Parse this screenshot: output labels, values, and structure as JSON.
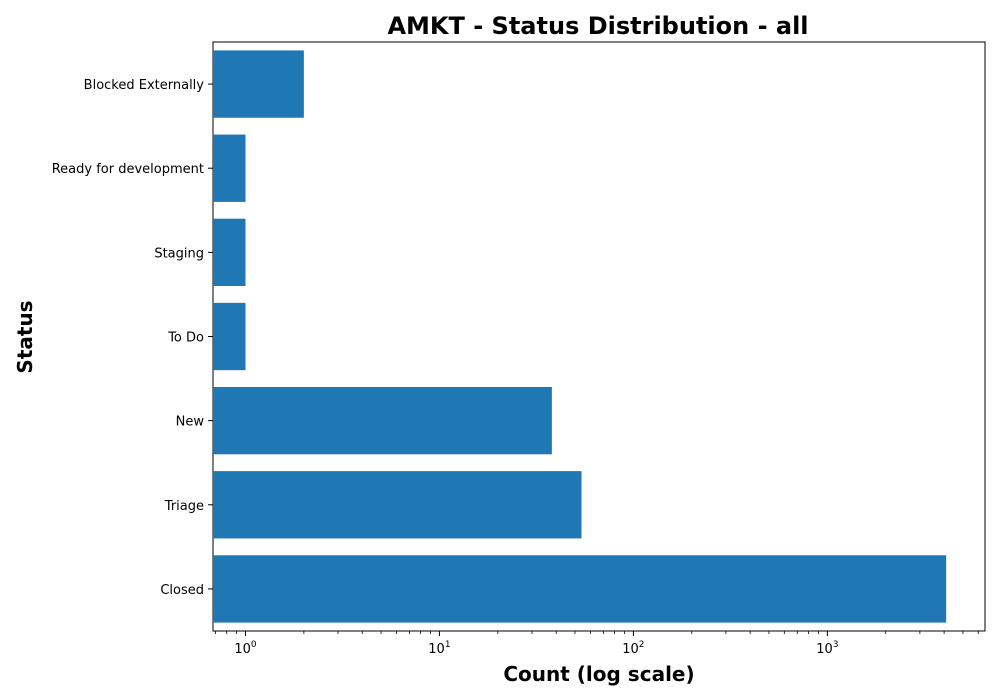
{
  "chart_data": {
    "type": "bar",
    "orientation": "horizontal",
    "title": "AMKT - Status Distribution - all",
    "xlabel": "Count (log scale)",
    "ylabel": "Status",
    "x_scale": "log",
    "xlim": [
      0.68,
      6500
    ],
    "x_ticks": [
      {
        "value": 1,
        "label_base": "10",
        "label_exp": "0"
      },
      {
        "value": 10,
        "label_base": "10",
        "label_exp": "1"
      },
      {
        "value": 100,
        "label_base": "10",
        "label_exp": "2"
      },
      {
        "value": 1000,
        "label_base": "10",
        "label_exp": "3"
      }
    ],
    "categories": [
      "Closed",
      "Triage",
      "New",
      "To Do",
      "Staging",
      "Ready for development",
      "Blocked Externally"
    ],
    "values": [
      4100,
      54,
      38,
      1,
      1,
      1,
      2
    ],
    "bar_color": "#1f77b4",
    "grid": false,
    "legend": "none"
  }
}
